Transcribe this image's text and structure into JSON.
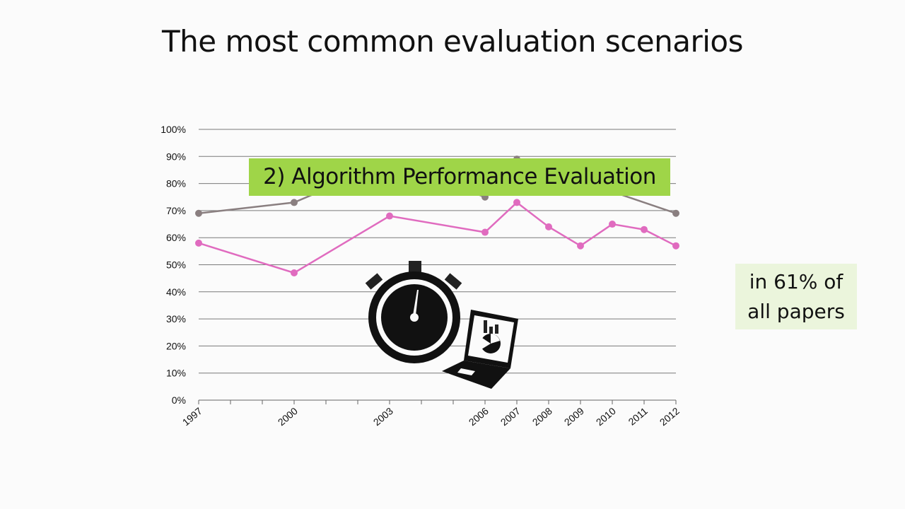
{
  "slide": {
    "title": "The most common evaluation scenarios"
  },
  "callout": {
    "label": "2) Algorithm Performance Evaluation"
  },
  "note": {
    "line1": "in 61% of",
    "line2": "all papers"
  },
  "icons": [
    "stopwatch-icon",
    "laptop-chart-icon"
  ],
  "chart_data": {
    "type": "line",
    "title": "",
    "xlabel": "",
    "ylabel": "",
    "ylim": [
      0,
      100
    ],
    "y_ticks": [
      "0%",
      "10%",
      "20%",
      "30%",
      "40%",
      "50%",
      "60%",
      "70%",
      "80%",
      "90%",
      "100%"
    ],
    "x": [
      1997,
      2000,
      2003,
      2006,
      2007,
      2008,
      2009,
      2010,
      2011,
      2012
    ],
    "x_labels": [
      "1997",
      "2000",
      "2003",
      "2006",
      "2007",
      "2008",
      "2009",
      "2010",
      "2011",
      "2012"
    ],
    "x_range": [
      1997,
      2012
    ],
    "grid": true,
    "series": [
      {
        "color": "#8a7f80",
        "values": [
          69,
          73,
          88,
          75,
          89,
          null,
          null,
          null,
          null,
          69
        ]
      },
      {
        "color": "#e06bbf",
        "values": [
          58,
          47,
          68,
          62,
          73,
          64,
          57,
          65,
          63,
          57
        ]
      }
    ]
  }
}
